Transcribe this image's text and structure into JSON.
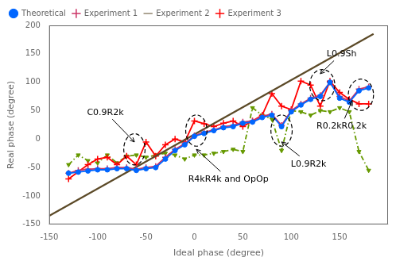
{
  "chart_data": {
    "type": "line",
    "xlabel": "Ideal phase (degree)",
    "ylabel": "Real phase (degree)",
    "xlim": [
      -150,
      200
    ],
    "ylim": [
      -150,
      200
    ],
    "xticks": [
      -150,
      -100,
      -50,
      0,
      50,
      100,
      150
    ],
    "yticks": [
      -150,
      -100,
      -50,
      0,
      50,
      100,
      150,
      200
    ],
    "grid": false,
    "legend": "upper left",
    "series": [
      {
        "name": "Theoretical",
        "color": "#0066FF",
        "marker": "circle",
        "line_style": "solid",
        "x": [
          -130,
          -120,
          -110,
          -100,
          -90,
          -80,
          -70,
          -60,
          -50,
          -40,
          -30,
          -20,
          -10,
          0,
          10,
          20,
          30,
          40,
          50,
          60,
          70,
          80,
          90,
          100,
          110,
          120,
          130,
          140,
          150,
          160,
          170,
          180
        ],
        "values": [
          -60,
          -58,
          -56,
          -54,
          -54,
          -52,
          -52,
          -55,
          -52,
          -50,
          -35,
          -20,
          -10,
          5,
          10,
          15,
          20,
          22,
          28,
          30,
          38,
          42,
          22,
          48,
          60,
          70,
          75,
          100,
          72,
          65,
          85,
          90
        ]
      },
      {
        "name": "Experiment 1",
        "color": "#CC3366",
        "marker": "plus",
        "line_style": "solid",
        "x": [
          -130,
          -120,
          -110,
          -100,
          -90,
          -80,
          -70,
          -60,
          -50,
          -40,
          -30,
          -20,
          -10,
          0,
          10,
          20,
          30,
          40,
          50,
          60,
          70,
          80,
          90,
          100,
          110,
          120,
          130,
          140,
          150,
          160,
          170,
          180
        ],
        "values": [
          -60,
          -55,
          -53,
          -52,
          -52,
          -50,
          -50,
          -53,
          -50,
          -48,
          -32,
          -18,
          -8,
          6,
          12,
          16,
          22,
          24,
          30,
          32,
          40,
          44,
          24,
          50,
          62,
          72,
          77,
          100,
          75,
          67,
          88,
          92
        ]
      },
      {
        "name": "Experiment 2",
        "color": "#5C4A28",
        "line_style": "solid",
        "x": [
          -150,
          185
        ],
        "values": [
          -135,
          185
        ]
      },
      {
        "name": "Experiment 3",
        "color": "#FF0000",
        "marker": "plus",
        "line_style": "solid",
        "x": [
          -130,
          -110,
          -100,
          -90,
          -80,
          -70,
          -60,
          -50,
          -40,
          -30,
          -20,
          -10,
          0,
          10,
          20,
          30,
          40,
          50,
          60,
          70,
          80,
          90,
          100,
          110,
          120,
          130,
          140,
          150,
          160,
          170,
          180
        ],
        "values": [
          -70,
          -45,
          -35,
          -32,
          -45,
          -30,
          -45,
          -5,
          -30,
          -10,
          0,
          -5,
          32,
          27,
          22,
          28,
          32,
          22,
          32,
          42,
          80,
          58,
          52,
          102,
          95,
          58,
          102,
          82,
          70,
          62,
          62
        ]
      },
      {
        "color": "#669900",
        "marker": "triangle_down",
        "line_style": "dashdot",
        "x": [
          -130,
          -120,
          -110,
          -100,
          -90,
          -80,
          -70,
          -60,
          -50,
          -40,
          -30,
          -20,
          -10,
          0,
          10,
          20,
          30,
          40,
          50,
          60,
          70,
          80,
          90,
          100,
          110,
          120,
          130,
          140,
          150,
          160,
          170,
          180
        ],
        "values": [
          -45,
          -28,
          -38,
          -42,
          -28,
          -42,
          -30,
          -28,
          -32,
          -28,
          -25,
          -28,
          -35,
          -28,
          -28,
          -25,
          -22,
          -18,
          -22,
          55,
          42,
          35,
          -20,
          50,
          48,
          42,
          50,
          48,
          55,
          48,
          -22,
          -55
        ]
      }
    ],
    "ellipses": [
      {
        "cx": -62,
        "cy": -18,
        "width": 22,
        "height": 55
      },
      {
        "cx": 2,
        "cy": 15,
        "width": 22,
        "height": 55
      },
      {
        "cx": 90,
        "cy": 15,
        "width": 22,
        "height": 55
      },
      {
        "cx": 132,
        "cy": 95,
        "width": 26,
        "height": 55
      },
      {
        "cx": 172,
        "cy": 78,
        "width": 26,
        "height": 55
      }
    ],
    "annotations": [
      {
        "text": "C0.9R2k",
        "x": -62,
        "y": -5,
        "text_x": -92,
        "text_y": 42
      },
      {
        "text": "R4kR4k and OpOp",
        "x": 2,
        "y": -18,
        "text_x": 35,
        "text_y": -75
      },
      {
        "text": "L0.9Sh",
        "x": 130,
        "y": 115,
        "text_x": 152,
        "text_y": 145
      },
      {
        "text": "L0.9R2k",
        "x": 90,
        "y": -5,
        "text_x": 118,
        "text_y": -48
      },
      {
        "text": "R0.2kR0.2k",
        "x": 163,
        "y": 68,
        "text_x": 152,
        "text_y": 18
      }
    ]
  }
}
